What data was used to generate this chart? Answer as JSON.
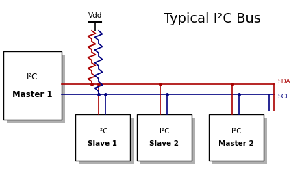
{
  "title": "Typical I²C Bus",
  "title_fontsize": 14,
  "bg_color": "#ffffff",
  "box_facecolor": "#ffffff",
  "box_edgecolor": "#000000",
  "shadow_color": "#b0b0b0",
  "sda_color": "#aa0000",
  "scl_color": "#000080",
  "wire_color": "#000000",
  "sda_label": "SDA",
  "scl_label": "SCL",
  "vdd_label": "Vdd",
  "master1_label": "I²C\nMaster 1",
  "slave1_label": "I²C\nSlave 1",
  "slave2_label": "I²C\nSlave 2",
  "master2_label": "I²C\nMaster 2"
}
